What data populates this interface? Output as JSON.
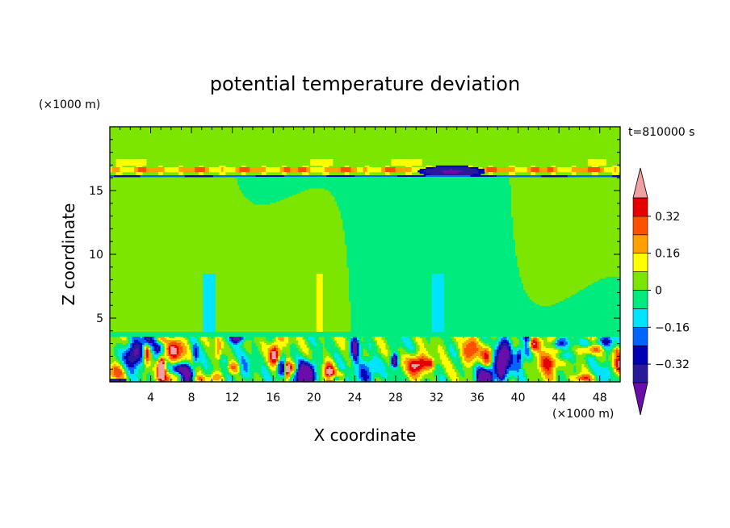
{
  "chart_data": {
    "type": "heatmap",
    "title": "potential temperature deviation",
    "xlabel": "X coordinate",
    "ylabel": "Z coordinate",
    "x_unit": "(×1000 m)",
    "y_unit": "(×1000 m)",
    "time_label": "t=810000 s",
    "xlim": [
      0,
      50
    ],
    "ylim": [
      0,
      20
    ],
    "x_ticks": [
      4,
      8,
      12,
      16,
      20,
      24,
      28,
      32,
      36,
      40,
      44,
      48
    ],
    "y_ticks": [
      5,
      10,
      15
    ],
    "colorbar": {
      "levels": [
        -0.4,
        -0.32,
        -0.24,
        -0.16,
        -0.08,
        0,
        0.08,
        0.16,
        0.24,
        0.32,
        0.4
      ],
      "labeled_values": [
        0.32,
        0.16,
        0,
        -0.16,
        -0.32
      ],
      "tick_labels": [
        "0.32",
        "0.16",
        "0",
        "−0.16",
        "−0.32"
      ],
      "colors": [
        "#6a0dab",
        "#2a1a9a",
        "#0000b4",
        "#0064ff",
        "#00e5ff",
        "#00eb7d",
        "#7de600",
        "#ffff00",
        "#ffa000",
        "#ff5000",
        "#e60000",
        "#f0a0a0"
      ],
      "extend": "both"
    },
    "features": [
      {
        "region": "upper layer, z 16-17",
        "x_range": [
          0,
          50
        ],
        "value": 0.24
      },
      {
        "region": "cold lens near tropopause",
        "x_range": [
          29,
          38
        ],
        "z_range": [
          16.3,
          17
        ],
        "value": -0.4
      },
      {
        "region": "boundary layer turbulence",
        "z_range": [
          0,
          3.5
        ],
        "values_range": [
          -0.4,
          0.4
        ]
      }
    ],
    "grid": false,
    "legend": "colorbar right"
  }
}
